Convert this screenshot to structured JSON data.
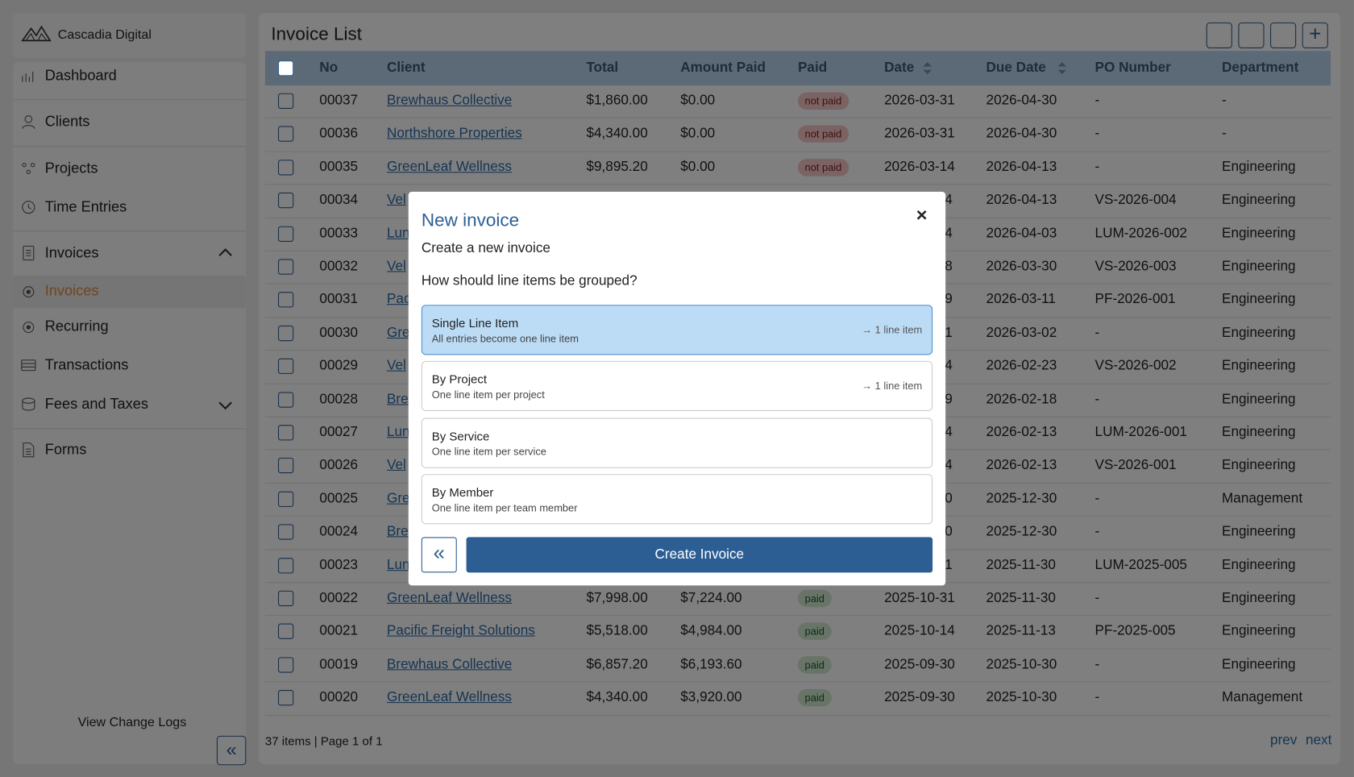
{
  "brand": "Cascadia Digital",
  "nav": {
    "dashboard": "Dashboard",
    "clients": "Clients",
    "projects": "Projects",
    "time_entries": "Time Entries",
    "invoices": "Invoices",
    "invoices_sub": "Invoices",
    "recurring": "Recurring",
    "transactions": "Transactions",
    "fees": "Fees and Taxes",
    "forms": "Forms",
    "change_logs": "View Change Logs"
  },
  "page_title": "Invoice List",
  "table": {
    "columns": [
      "No",
      "Client",
      "Total",
      "Amount Paid",
      "Paid",
      "Date",
      "Due Date",
      "PO Number",
      "Department"
    ],
    "rows": [
      [
        "00037",
        "Brewhaus Collective",
        "$1,860.00",
        "$0.00",
        "not paid",
        "2026-03-31",
        "2026-04-30",
        "-",
        "-"
      ],
      [
        "00036",
        "Northshore Properties",
        "$4,340.00",
        "$0.00",
        "not paid",
        "2026-03-31",
        "2026-04-30",
        "-",
        "-"
      ],
      [
        "00035",
        "GreenLeaf Wellness",
        "$9,895.20",
        "$0.00",
        "not paid",
        "2026-03-14",
        "2026-04-13",
        "-",
        "Engineering"
      ],
      [
        "00034",
        "Vel",
        null,
        null,
        null,
        "4",
        "2026-04-13",
        "VS-2026-004",
        "Engineering"
      ],
      [
        "00033",
        "Lun",
        null,
        null,
        null,
        "4",
        "2026-04-03",
        "LUM-2026-002",
        "Engineering"
      ],
      [
        "00032",
        "Vel",
        null,
        null,
        null,
        "8",
        "2026-03-30",
        "VS-2026-003",
        "Engineering"
      ],
      [
        "00031",
        "Pac",
        null,
        null,
        null,
        "9",
        "2026-03-11",
        "PF-2026-001",
        "Engineering"
      ],
      [
        "00030",
        "Gre",
        null,
        null,
        null,
        "1",
        "2026-03-02",
        "-",
        "Engineering"
      ],
      [
        "00029",
        "Vel",
        null,
        null,
        null,
        "4",
        "2026-02-23",
        "VS-2026-002",
        "Engineering"
      ],
      [
        "00028",
        "Bre",
        null,
        null,
        null,
        "9",
        "2026-02-18",
        "-",
        "Engineering"
      ],
      [
        "00027",
        "Lun",
        null,
        null,
        null,
        "4",
        "2026-02-13",
        "LUM-2026-001",
        "Engineering"
      ],
      [
        "00026",
        "Vel",
        null,
        null,
        null,
        "4",
        "2026-02-13",
        "VS-2026-001",
        "Engineering"
      ],
      [
        "00025",
        "Gre",
        null,
        null,
        null,
        "0",
        "2025-12-30",
        "-",
        "Management"
      ],
      [
        "00024",
        "Bre",
        null,
        null,
        null,
        "0",
        "2025-12-30",
        "-",
        "Engineering"
      ],
      [
        "00023",
        "Lun",
        null,
        null,
        null,
        "1",
        "2025-11-30",
        "LUM-2025-005",
        "Engineering"
      ],
      [
        "00022",
        "GreenLeaf Wellness",
        "$7,998.00",
        "$7,224.00",
        "paid",
        "2025-10-31",
        "2025-11-30",
        "-",
        "Engineering"
      ],
      [
        "00021",
        "Pacific Freight Solutions",
        "$5,518.00",
        "$4,984.00",
        "paid",
        "2025-10-14",
        "2025-11-13",
        "PF-2025-005",
        "Engineering"
      ],
      [
        "00019",
        "Brewhaus Collective",
        "$6,857.20",
        "$6,193.60",
        "paid",
        "2025-09-30",
        "2025-10-30",
        "-",
        "Engineering"
      ],
      [
        "00020",
        "GreenLeaf Wellness",
        "$4,340.00",
        "$3,920.00",
        "paid",
        "2025-09-30",
        "2025-10-30",
        "-",
        "Management"
      ]
    ]
  },
  "footer": {
    "summary": "37 items | Page 1 of 1",
    "prev": "prev",
    "next": "next"
  },
  "modal": {
    "title": "New invoice",
    "subtitle": "Create a new invoice",
    "question": "How should line items be grouped?",
    "options": [
      {
        "label": "Single Line Item",
        "desc": "All entries become one line item",
        "hint": "→ 1 line item"
      },
      {
        "label": "By Project",
        "desc": "One line item per project",
        "hint": "→ 1 line item"
      },
      {
        "label": "By Service",
        "desc": "One line item per service",
        "hint": null
      },
      {
        "label": "By Member",
        "desc": "One line item per team member",
        "hint": null
      }
    ],
    "create": "Create Invoice",
    "close": "×"
  }
}
